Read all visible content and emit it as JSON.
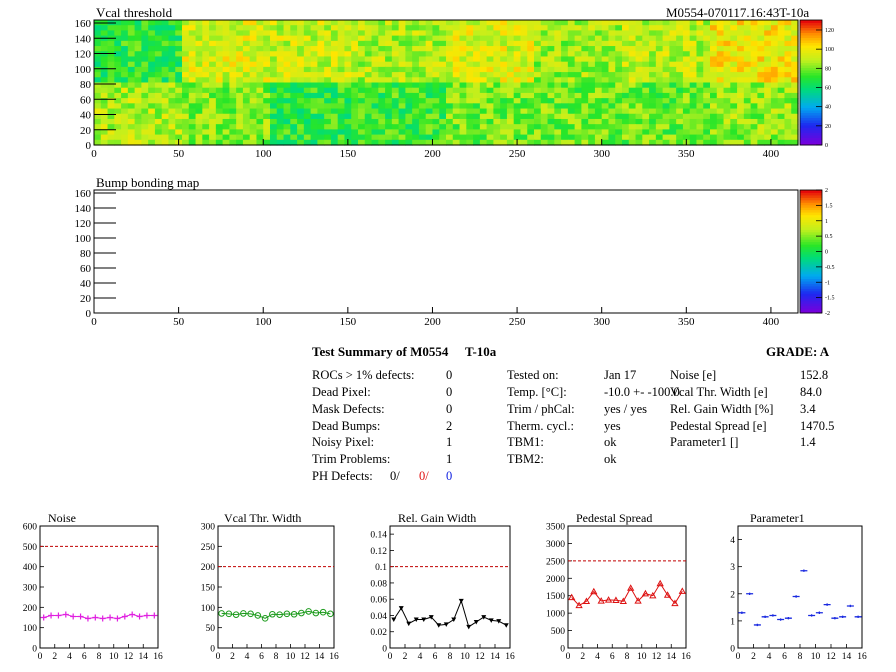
{
  "module_label": "M0554-070117.16:43T-10a",
  "maps": [
    {
      "title": "Vcal threshold",
      "xticks": [
        "0",
        "50",
        "100",
        "150",
        "200",
        "250",
        "300",
        "350",
        "400"
      ],
      "yticks": [
        "0",
        "20",
        "40",
        "60",
        "80",
        "100",
        "120",
        "140",
        "160"
      ],
      "palette_ticks": [
        "0",
        "20",
        "40",
        "60",
        "80",
        "100",
        "120"
      ],
      "roc_thresholds": {
        "top": [
          70,
          95,
          92,
          88,
          95,
          85,
          90,
          100
        ],
        "bottom": [
          88,
          82,
          70,
          72,
          80,
          80,
          78,
          84
        ]
      }
    },
    {
      "title": "Bump bonding map",
      "xticks": [
        "0",
        "50",
        "100",
        "150",
        "200",
        "250",
        "300",
        "350",
        "400"
      ],
      "yticks": [
        "0",
        "20",
        "40",
        "60",
        "80",
        "100",
        "120",
        "140",
        "160"
      ],
      "palette_ticks": [
        "-2",
        "-1.5",
        "-1",
        "-0.5",
        "0",
        "0.5",
        "1",
        "1.5",
        "2"
      ]
    }
  ],
  "summary": {
    "title": "Test Summary of M0554",
    "temp_tag": "T-10a",
    "grade_label": "GRADE:  A",
    "defects": [
      {
        "label": "ROCs > 1% defects:",
        "value": "0"
      },
      {
        "label": "Dead Pixel:",
        "value": "0"
      },
      {
        "label": "Mask Defects:",
        "value": "0"
      },
      {
        "label": "Dead Bumps:",
        "value": "2"
      },
      {
        "label": "Noisy Pixel:",
        "value": "1"
      },
      {
        "label": "Trim Problems:",
        "value": "1"
      }
    ],
    "ph_defects": {
      "label": "PH Defects:",
      "v1": "0/",
      "v2": "0/",
      "v3": "0"
    },
    "conditions": [
      {
        "label": "Tested on:",
        "value": "Jan 17"
      },
      {
        "label": "Temp. [°C]:",
        "value": "-10.0 +- -100.0"
      },
      {
        "label": "Trim / phCal:",
        "value": "yes / yes"
      },
      {
        "label": "Therm. cycl.:",
        "value": "yes"
      },
      {
        "label": "TBM1:",
        "value": "ok"
      },
      {
        "label": "TBM2:",
        "value": "ok"
      }
    ],
    "averages": [
      {
        "label": "Noise [e]",
        "value": "152.8"
      },
      {
        "label": "Vcal Thr. Width [e]",
        "value": "84.0"
      },
      {
        "label": "Rel. Gain Width [%]",
        "value": "3.4"
      },
      {
        "label": "Pedestal Spread [e]",
        "value": "1470.5"
      },
      {
        "label": "Parameter1 []",
        "value": "1.4"
      }
    ]
  },
  "chart_data": [
    {
      "type": "line",
      "title": "Noise",
      "x": [
        0,
        1,
        2,
        3,
        4,
        5,
        6,
        7,
        8,
        9,
        10,
        11,
        12,
        13,
        14,
        15
      ],
      "values": [
        150,
        160,
        160,
        165,
        155,
        155,
        145,
        150,
        145,
        150,
        145,
        155,
        165,
        155,
        160,
        160
      ],
      "ylim": [
        0,
        600
      ],
      "yticks": [
        0,
        100,
        200,
        300,
        400,
        500,
        600
      ],
      "xticks": [
        0,
        2,
        4,
        6,
        8,
        10,
        12,
        14,
        16
      ],
      "limit": 500,
      "color": "#e020e0",
      "marker": "plus"
    },
    {
      "type": "line",
      "title": "Vcal Thr. Width",
      "x": [
        0,
        1,
        2,
        3,
        4,
        5,
        6,
        7,
        8,
        9,
        10,
        11,
        12,
        13,
        14,
        15
      ],
      "values": [
        85,
        84,
        82,
        85,
        84,
        80,
        73,
        83,
        82,
        84,
        83,
        86,
        90,
        86,
        88,
        84
      ],
      "ylim": [
        0,
        300
      ],
      "yticks": [
        0,
        50,
        100,
        150,
        200,
        250,
        300
      ],
      "xticks": [
        0,
        2,
        4,
        6,
        8,
        10,
        12,
        14,
        16
      ],
      "limit": 200,
      "color": "#1a9a1a",
      "marker": "circle"
    },
    {
      "type": "line",
      "title": "Rel. Gain Width",
      "x": [
        0,
        1,
        2,
        3,
        4,
        5,
        6,
        7,
        8,
        9,
        10,
        11,
        12,
        13,
        14,
        15
      ],
      "values": [
        0.035,
        0.049,
        0.03,
        0.035,
        0.035,
        0.038,
        0.028,
        0.029,
        0.035,
        0.058,
        0.026,
        0.032,
        0.038,
        0.034,
        0.033,
        0.028
      ],
      "ylim": [
        0,
        0.15
      ],
      "yticks": [
        0,
        0.02,
        0.04,
        0.06,
        0.08,
        0.1,
        0.12,
        0.14
      ],
      "xticks": [
        0,
        2,
        4,
        6,
        8,
        10,
        12,
        14,
        16
      ],
      "limit": 0.1,
      "color": "#000000",
      "marker": "tri-down"
    },
    {
      "type": "line",
      "title": "Pedestal Spread",
      "x": [
        0,
        1,
        2,
        3,
        4,
        5,
        6,
        7,
        8,
        9,
        10,
        11,
        12,
        13,
        14,
        15
      ],
      "values": [
        1450,
        1220,
        1340,
        1620,
        1350,
        1380,
        1370,
        1340,
        1720,
        1350,
        1560,
        1500,
        1850,
        1520,
        1280,
        1630
      ],
      "ylim": [
        0,
        3500
      ],
      "yticks": [
        0,
        500,
        1000,
        1500,
        2000,
        2500,
        3000,
        3500
      ],
      "xticks": [
        0,
        2,
        4,
        6,
        8,
        10,
        12,
        14,
        16
      ],
      "limit": 2500,
      "color": "#dd1111",
      "marker": "tri-up"
    },
    {
      "type": "scatter",
      "title": "Parameter1",
      "x": [
        0,
        1,
        2,
        3,
        4,
        5,
        6,
        7,
        8,
        9,
        10,
        11,
        12,
        13,
        14,
        15
      ],
      "values": [
        1.3,
        2.0,
        0.85,
        1.15,
        1.2,
        1.05,
        1.1,
        1.9,
        2.85,
        1.2,
        1.3,
        1.6,
        1.1,
        1.15,
        1.55,
        1.15
      ],
      "ylim": [
        0,
        4.5
      ],
      "yticks": [
        0,
        1,
        2,
        3,
        4
      ],
      "xticks": [
        0,
        2,
        4,
        6,
        8,
        10,
        12,
        14,
        16
      ],
      "color": "#1a2ae0",
      "marker": "hbar"
    }
  ]
}
